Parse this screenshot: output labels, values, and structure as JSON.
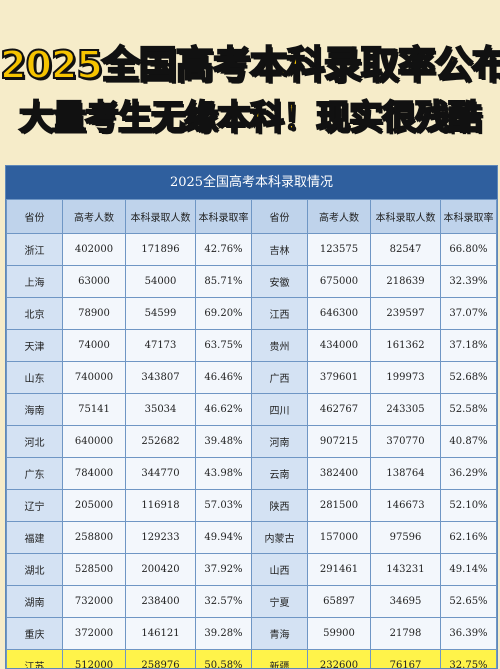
{
  "headline": {
    "line1": "2025全国高考本科录取率公布",
    "line2": "大量考生无缘本科！现实很残酷"
  },
  "table": {
    "title": "2025全国高考本科录取情况",
    "headers": [
      "省份",
      "高考人数",
      "本科录取人数",
      "本科录取率",
      "省份",
      "高考人数",
      "本科录取人数",
      "本科录取率"
    ],
    "rows": [
      [
        "浙江",
        "402000",
        "171896",
        "42.76%",
        "吉林",
        "123575",
        "82547",
        "66.80%"
      ],
      [
        "上海",
        "63000",
        "54000",
        "85.71%",
        "安徽",
        "675000",
        "218639",
        "32.39%"
      ],
      [
        "北京",
        "78900",
        "54599",
        "69.20%",
        "江西",
        "646300",
        "239597",
        "37.07%"
      ],
      [
        "天津",
        "74000",
        "47173",
        "63.75%",
        "贵州",
        "434000",
        "161362",
        "37.18%"
      ],
      [
        "山东",
        "740000",
        "343807",
        "46.46%",
        "广西",
        "379601",
        "199973",
        "52.68%"
      ],
      [
        "海南",
        "75141",
        "35034",
        "46.62%",
        "四川",
        "462767",
        "243305",
        "52.58%"
      ],
      [
        "河北",
        "640000",
        "252682",
        "39.48%",
        "河南",
        "907215",
        "370770",
        "40.87%"
      ],
      [
        "广东",
        "784000",
        "344770",
        "43.98%",
        "云南",
        "382400",
        "138764",
        "36.29%"
      ],
      [
        "辽宁",
        "205000",
        "116918",
        "57.03%",
        "陕西",
        "281500",
        "146673",
        "52.10%"
      ],
      [
        "福建",
        "258800",
        "129233",
        "49.94%",
        "内蒙古",
        "157000",
        "97596",
        "62.16%"
      ],
      [
        "湖北",
        "528500",
        "200420",
        "37.92%",
        "山西",
        "291461",
        "143231",
        "49.14%"
      ],
      [
        "湖南",
        "732000",
        "238400",
        "32.57%",
        "宁夏",
        "65897",
        "34695",
        "52.65%"
      ],
      [
        "重庆",
        "372000",
        "146121",
        "39.28%",
        "青海",
        "59900",
        "21798",
        "36.39%"
      ],
      [
        "江苏",
        "512000",
        "258976",
        "50.58%",
        "新疆",
        "232600",
        "76167",
        "32.75%"
      ]
    ],
    "highlight_row": 13
  },
  "colors": {
    "banner_bg": "#f6ecc9",
    "headline_fill": "#f6c400",
    "title_bar": "#2f5f9e",
    "header_bg": "#bfd3eb",
    "province_bg": "#d4e2f3",
    "highlight": "#fff34a"
  }
}
